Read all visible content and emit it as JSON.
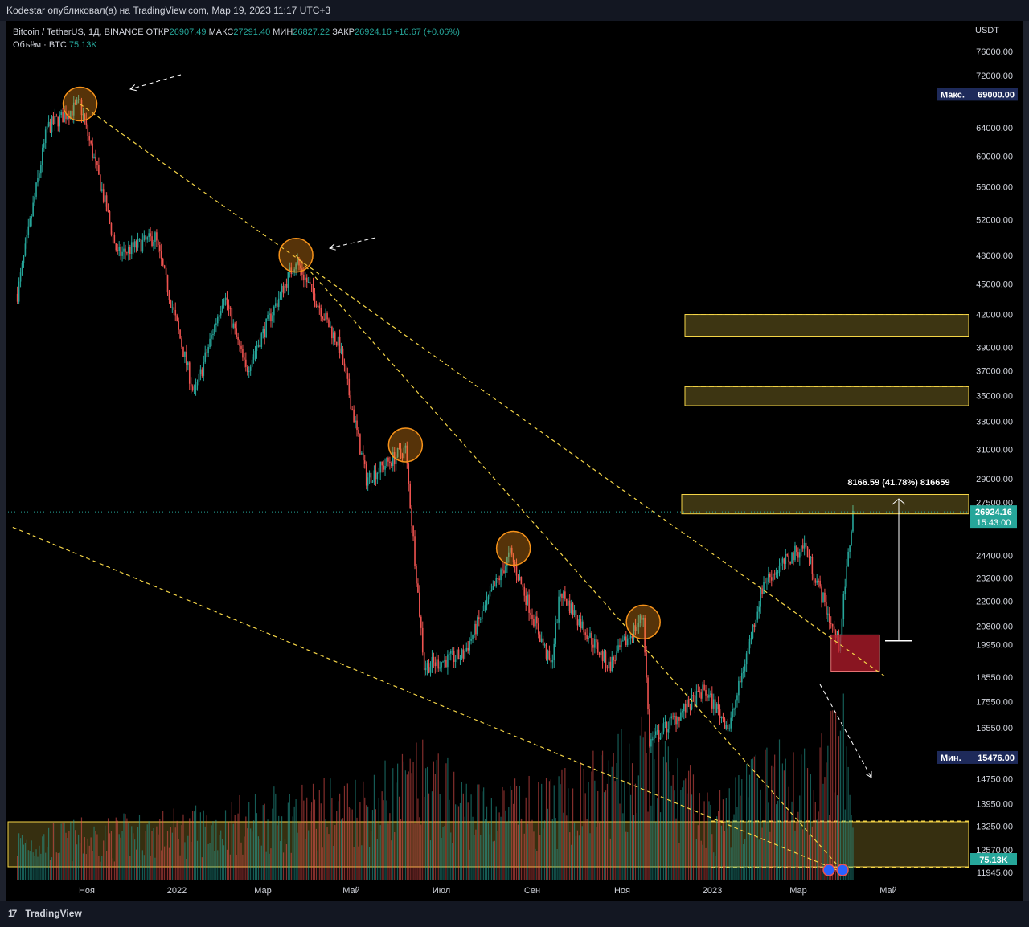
{
  "header": {
    "publisher_line": "Kodestar опубликовал(а) на TradingView.com, Мар 19, 2023 11:17 UTC+3"
  },
  "legend": {
    "symbol": "Bitcoin / TetherUS, 1Д, BINANCE",
    "open_label": "ОТКР",
    "open_value": "26907.49",
    "high_label": "МАКС",
    "high_value": "27291.40",
    "low_label": "МИН",
    "low_value": "26827.22",
    "close_label": "ЗАКР",
    "close_value": "26924.16",
    "change_value": "+16.67 (+0.06%)",
    "volume_label": "Объём · BTC",
    "volume_value": "75.13K"
  },
  "footer": {
    "brand": "TradingView",
    "logo": "17"
  },
  "colors": {
    "up": "#26a69a",
    "down": "#ef5350",
    "zone": "#f5d547",
    "marker": "#f7931a",
    "red_box": "#b71c2c"
  },
  "chart_data": {
    "type": "candlestick",
    "scale": "log",
    "currency": "USDT",
    "y_ticks": [
      76000,
      72000,
      64000,
      60000,
      56000,
      52000,
      48000,
      45000,
      42000,
      39000,
      37000,
      35000,
      33000,
      31000,
      29000,
      27500,
      24400,
      23200,
      22000,
      20800,
      19950,
      18550,
      17550,
      16550,
      14750,
      13950,
      13250,
      12570,
      11945
    ],
    "y_tick_labels": [
      "76000.00",
      "72000.00",
      "64000.00",
      "60000.00",
      "56000.00",
      "52000.00",
      "48000.00",
      "45000.00",
      "42000.00",
      "39000.00",
      "37000.00",
      "35000.00",
      "33000.00",
      "31000.00",
      "29000.00",
      "27500.00",
      "24400.00",
      "23200.00",
      "22000.00",
      "20800.00",
      "19950.00",
      "18550.00",
      "17550.00",
      "16550.00",
      "14750.00",
      "13950.00",
      "13250.00",
      "12570.00",
      "11945.00"
    ],
    "x_tick_labels": [
      "Ноя",
      "2022",
      "Мар",
      "Май",
      "Июл",
      "Сен",
      "Ноя",
      "2023",
      "Мар",
      "Май"
    ],
    "max_badge": {
      "label": "Макс.",
      "value": "69000.00",
      "price": 69000
    },
    "min_badge": {
      "label": "Мин.",
      "value": "15476.00",
      "price": 15476
    },
    "last_price": {
      "value": "26924.16",
      "countdown": "15:43:00",
      "price": 26924
    },
    "volume_badge": "75.13K",
    "measure_label": "8166.59 (41.78%) 816659",
    "price_path": [
      {
        "d": "2021-10-01",
        "p": 44000
      },
      {
        "d": "2021-10-20",
        "p": 64000
      },
      {
        "d": "2021-11-10",
        "p": 67500
      },
      {
        "d": "2021-11-26",
        "p": 54000
      },
      {
        "d": "2021-12-04",
        "p": 48000
      },
      {
        "d": "2021-12-28",
        "p": 50000
      },
      {
        "d": "2022-01-22",
        "p": 35000
      },
      {
        "d": "2022-02-10",
        "p": 44000
      },
      {
        "d": "2022-02-24",
        "p": 37000
      },
      {
        "d": "2022-03-28",
        "p": 47500
      },
      {
        "d": "2022-04-25",
        "p": 39000
      },
      {
        "d": "2022-05-12",
        "p": 29000
      },
      {
        "d": "2022-06-06",
        "p": 31000
      },
      {
        "d": "2022-06-18",
        "p": 19000
      },
      {
        "d": "2022-07-13",
        "p": 19500
      },
      {
        "d": "2022-08-12",
        "p": 24500
      },
      {
        "d": "2022-09-07",
        "p": 19000
      },
      {
        "d": "2022-09-13",
        "p": 22500
      },
      {
        "d": "2022-10-14",
        "p": 19000
      },
      {
        "d": "2022-11-05",
        "p": 21300
      },
      {
        "d": "2022-11-09",
        "p": 16000
      },
      {
        "d": "2022-12-14",
        "p": 18000
      },
      {
        "d": "2022-12-30",
        "p": 16550
      },
      {
        "d": "2023-01-21",
        "p": 23000
      },
      {
        "d": "2023-02-16",
        "p": 25000
      },
      {
        "d": "2023-03-10",
        "p": 19900
      },
      {
        "d": "2023-03-19",
        "p": 26924
      }
    ],
    "volume_path": [
      {
        "d": "2021-10-01",
        "v": 0.3
      },
      {
        "d": "2021-12-04",
        "v": 0.35
      },
      {
        "d": "2022-01-22",
        "v": 0.4
      },
      {
        "d": "2022-05-12",
        "v": 0.6
      },
      {
        "d": "2022-06-18",
        "v": 0.75
      },
      {
        "d": "2022-07-20",
        "v": 0.55
      },
      {
        "d": "2022-09-07",
        "v": 0.55
      },
      {
        "d": "2022-11-09",
        "v": 0.9
      },
      {
        "d": "2022-12-20",
        "v": 0.45
      },
      {
        "d": "2023-01-21",
        "v": 0.75
      },
      {
        "d": "2023-02-20",
        "v": 0.8
      },
      {
        "d": "2023-03-13",
        "v": 1.0
      },
      {
        "d": "2023-03-19",
        "v": 0.7
      }
    ],
    "zones": [
      {
        "from": 40000,
        "to": 42000
      },
      {
        "from": 34200,
        "to": 35700
      },
      {
        "from": 26800,
        "to": 28000
      }
    ],
    "red_zone": {
      "from_date": "2023-03-05",
      "to_date": "2023-04-05",
      "from": 18800,
      "to": 20400
    },
    "trendlines": [
      {
        "from_date": "2021-11-10",
        "from": 67500,
        "to_date": "2023-04-08",
        "to": 18600
      },
      {
        "from_date": "2022-03-28",
        "from": 48000,
        "to_date": "2023-03-10",
        "to": 12100
      },
      {
        "from_date": "2021-09-28",
        "from": 26000,
        "to_date": "2023-03-15",
        "to": 11900
      }
    ],
    "highlight_circles": [
      {
        "d": "2021-11-10",
        "p": 67500
      },
      {
        "d": "2022-03-28",
        "p": 48000
      },
      {
        "d": "2022-06-06",
        "p": 31300
      },
      {
        "d": "2022-08-14",
        "p": 24800
      },
      {
        "d": "2022-11-05",
        "p": 21000
      }
    ]
  }
}
